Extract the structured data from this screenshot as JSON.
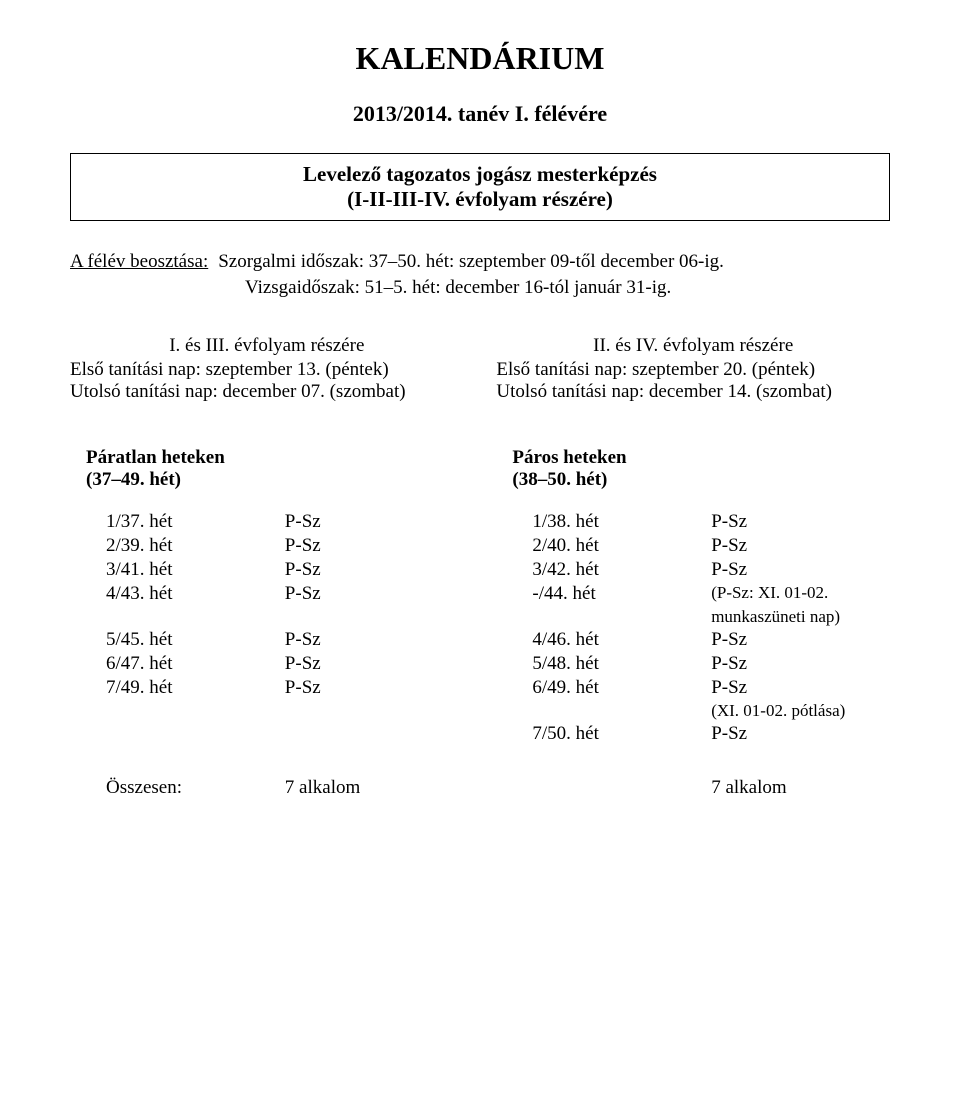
{
  "title": "KALENDÁRIUM",
  "subtitle": "2013/2014. tanév I. félévére",
  "box": {
    "line1": "Levelező tagozatos jogász mesterképzés",
    "line2": "(I-II-III-IV. évfolyam részére)"
  },
  "schedule": {
    "label1": "A félév beosztása:",
    "text1": "Szorgalmi időszak: 37–50. hét: szeptember 09-től december 06-ig.",
    "text2": "Vizsgaidőszak: 51–5. hét: december 16-tól január 31-ig."
  },
  "left_block": {
    "header": "I. és III. évfolyam részére",
    "line1": "Első tanítási nap: szeptember 13. (péntek)",
    "line2": "Utolsó tanítási nap: december 07. (szombat)"
  },
  "right_block": {
    "header": "II. és IV. évfolyam részére",
    "line1": "Első tanítási nap: szeptember 20. (péntek)",
    "line2": "Utolsó tanítási nap: december 14. (szombat)"
  },
  "odd_weeks": {
    "title": "Páratlan heteken",
    "range": "(37–49. hét)",
    "rows": [
      {
        "label": "1/37. hét",
        "value": "P-Sz"
      },
      {
        "label": "2/39. hét",
        "value": "P-Sz"
      },
      {
        "label": "3/41. hét",
        "value": "P-Sz"
      },
      {
        "label": "4/43. hét",
        "value": "P-Sz"
      },
      {
        "label": "",
        "value": ""
      },
      {
        "label": "5/45. hét",
        "value": "P-Sz"
      },
      {
        "label": "6/47. hét",
        "value": "P-Sz"
      },
      {
        "label": "7/49. hét",
        "value": "P-Sz"
      }
    ]
  },
  "even_weeks": {
    "title": "Páros heteken",
    "range": "(38–50. hét)",
    "rows": [
      {
        "label": "1/38. hét",
        "value": "P-Sz",
        "note": ""
      },
      {
        "label": "2/40. hét",
        "value": "P-Sz",
        "note": ""
      },
      {
        "label": "3/42. hét",
        "value": "P-Sz",
        "note": ""
      },
      {
        "label": "-/44. hét",
        "value": "(P-Sz: XI. 01-02.",
        "note": "munkaszüneti nap)"
      },
      {
        "label": "4/46. hét",
        "value": "P-Sz",
        "note": ""
      },
      {
        "label": "5/48. hét",
        "value": "P-Sz",
        "note": ""
      },
      {
        "label": "6/49. hét",
        "value": "P-Sz",
        "note": "(XI. 01-02. pótlása)"
      },
      {
        "label": "7/50. hét",
        "value": "P-Sz",
        "note": ""
      }
    ]
  },
  "totals": {
    "label": "Összesen:",
    "left": "7 alkalom",
    "right": "7 alkalom"
  }
}
